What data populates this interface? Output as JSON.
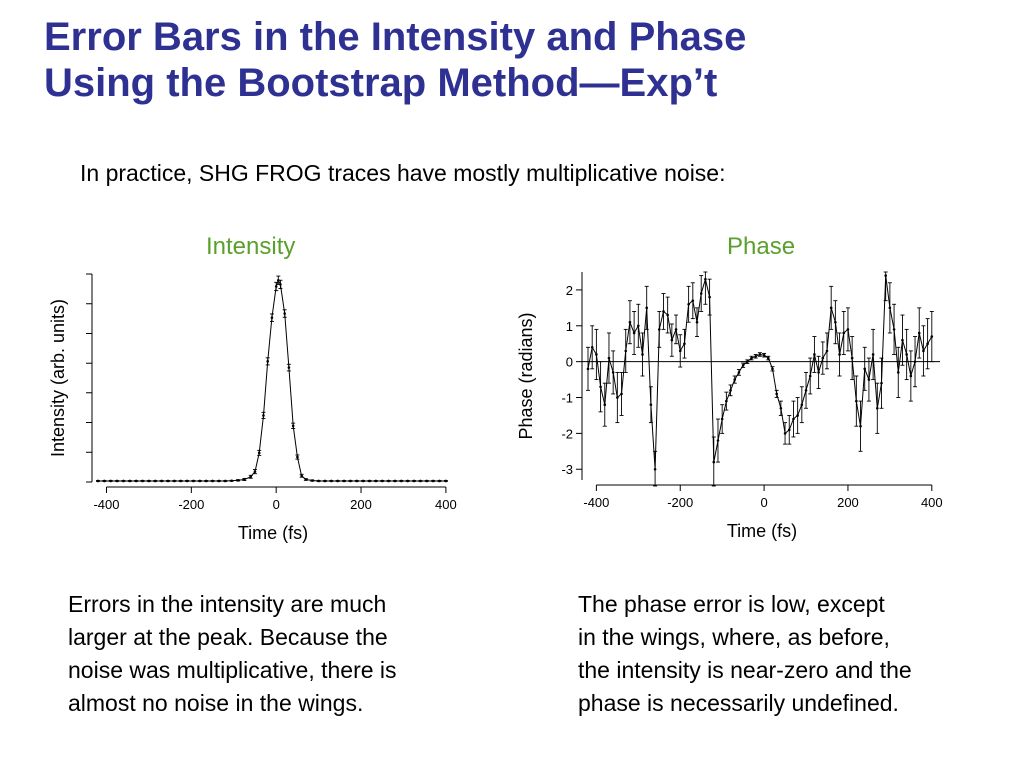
{
  "slide": {
    "title_lines": [
      "Error Bars in the Intensity and Phase",
      "Using the Bootstrap Method—Exp’t"
    ],
    "subtitle": "In practice, SHG FROG traces have mostly multiplicative noise:",
    "caption_left": [
      "Errors in the intensity are much",
      "larger at the peak. Because the",
      "noise was multiplicative, there is",
      "almost no noise in the wings."
    ],
    "caption_right": [
      "The phase error is low, except",
      "in the wings, where, as before,",
      "the intensity is near-zero and the",
      "phase is necessarily undefined."
    ],
    "colors": {
      "title": "#2e3192",
      "panel_title": "#5aa02c",
      "plot": "#000000"
    }
  },
  "chart_data": [
    {
      "type": "line",
      "title": "Intensity",
      "xlabel": "Time (fs)",
      "ylabel": "Intensity (arb. units)",
      "xlim": [
        -420,
        405
      ],
      "ylim": [
        0,
        1.0
      ],
      "xticks": [
        -400,
        -200,
        0,
        200,
        400
      ],
      "yticks": [
        0,
        0.143,
        0.286,
        0.429,
        0.571,
        0.714,
        0.857,
        1.0
      ],
      "show_ytick_labels": false,
      "series": [
        {
          "x": [
            -420,
            -405,
            -390,
            -375,
            -360,
            -345,
            -330,
            -315,
            -300,
            -285,
            -270,
            -255,
            -240,
            -225,
            -210,
            -195,
            -180,
            -165,
            -150,
            -135,
            -120,
            -105,
            -90,
            -75,
            -60,
            -50,
            -40,
            -30,
            -20,
            -10,
            0,
            5,
            10,
            20,
            30,
            40,
            50,
            60,
            70,
            85,
            100,
            115,
            130,
            145,
            160,
            175,
            190,
            205,
            220,
            235,
            250,
            265,
            280,
            295,
            310,
            325,
            340,
            355,
            370,
            385,
            400
          ],
          "y": [
            0.005,
            0.005,
            0.005,
            0.005,
            0.005,
            0.005,
            0.005,
            0.005,
            0.005,
            0.005,
            0.005,
            0.005,
            0.005,
            0.005,
            0.005,
            0.005,
            0.005,
            0.005,
            0.005,
            0.005,
            0.005,
            0.006,
            0.008,
            0.012,
            0.025,
            0.05,
            0.14,
            0.32,
            0.58,
            0.79,
            0.94,
            0.97,
            0.95,
            0.81,
            0.55,
            0.27,
            0.12,
            0.03,
            0.012,
            0.007,
            0.005,
            0.005,
            0.005,
            0.005,
            0.005,
            0.005,
            0.005,
            0.005,
            0.005,
            0.005,
            0.005,
            0.005,
            0.005,
            0.005,
            0.005,
            0.005,
            0.005,
            0.005,
            0.005,
            0.005,
            0.005
          ],
          "err": [
            0.002,
            0.002,
            0.002,
            0.002,
            0.002,
            0.002,
            0.002,
            0.002,
            0.002,
            0.002,
            0.002,
            0.002,
            0.002,
            0.002,
            0.002,
            0.002,
            0.002,
            0.002,
            0.002,
            0.002,
            0.002,
            0.002,
            0.003,
            0.005,
            0.007,
            0.01,
            0.012,
            0.015,
            0.017,
            0.018,
            0.02,
            0.02,
            0.02,
            0.018,
            0.016,
            0.013,
            0.01,
            0.007,
            0.004,
            0.003,
            0.002,
            0.002,
            0.002,
            0.002,
            0.002,
            0.002,
            0.002,
            0.002,
            0.002,
            0.002,
            0.002,
            0.002,
            0.002,
            0.002,
            0.002,
            0.002,
            0.002,
            0.002,
            0.002,
            0.002,
            0.002
          ]
        }
      ]
    },
    {
      "type": "line",
      "title": "Phase",
      "xlabel": "Time (fs)",
      "ylabel": "Phase (radians)",
      "xlim": [
        -420,
        410
      ],
      "ylim": [
        -3.3,
        2.5
      ],
      "xticks": [
        -400,
        -200,
        0,
        200,
        400
      ],
      "yticks": [
        -3,
        -2,
        -1,
        0,
        1,
        2
      ],
      "zero_line": true,
      "series": [
        {
          "x": [
            -420,
            -410,
            -400,
            -390,
            -380,
            -370,
            -360,
            -350,
            -340,
            -330,
            -320,
            -310,
            -300,
            -290,
            -280,
            -270,
            -260,
            -250,
            -240,
            -230,
            -220,
            -210,
            -200,
            -190,
            -180,
            -170,
            -160,
            -150,
            -140,
            -130,
            -120,
            -110,
            -100,
            -90,
            -80,
            -70,
            -60,
            -50,
            -40,
            -30,
            -20,
            -10,
            0,
            10,
            20,
            30,
            40,
            50,
            60,
            70,
            80,
            90,
            100,
            110,
            120,
            130,
            140,
            150,
            160,
            170,
            180,
            190,
            200,
            210,
            220,
            230,
            240,
            250,
            260,
            270,
            280,
            290,
            300,
            310,
            320,
            330,
            340,
            350,
            360,
            370,
            380,
            390,
            400
          ],
          "y": [
            -0.2,
            0.4,
            0.2,
            -0.7,
            -1.2,
            0.1,
            -0.3,
            -1.0,
            -0.9,
            0.3,
            1.1,
            0.8,
            1.0,
            0.2,
            1.5,
            -1.2,
            -3.0,
            0.9,
            1.4,
            1.3,
            0.6,
            0.9,
            0.3,
            0.5,
            1.6,
            1.7,
            1.1,
            1.9,
            2.3,
            1.8,
            -2.8,
            -2.2,
            -1.6,
            -1.1,
            -0.8,
            -0.5,
            -0.3,
            -0.1,
            0.0,
            0.1,
            0.15,
            0.2,
            0.18,
            0.1,
            -0.2,
            -0.9,
            -1.3,
            -2.0,
            -1.9,
            -1.6,
            -1.5,
            -1.2,
            -0.8,
            -0.4,
            0.2,
            -0.3,
            0.1,
            0.3,
            1.5,
            1.1,
            0.2,
            0.8,
            0.9,
            0.1,
            -1.1,
            -1.8,
            -0.2,
            -0.5,
            0.2,
            -1.3,
            -0.6,
            2.4,
            1.5,
            0.9,
            -0.3,
            0.6,
            0.2,
            -0.4,
            0.0,
            0.8,
            0.3,
            0.5,
            0.7
          ],
          "err": [
            0.6,
            0.6,
            0.7,
            0.7,
            0.6,
            0.7,
            0.6,
            0.7,
            0.6,
            0.6,
            0.6,
            0.6,
            0.6,
            0.6,
            0.6,
            0.5,
            0.5,
            0.5,
            0.5,
            0.5,
            0.45,
            0.4,
            0.45,
            0.4,
            0.5,
            0.5,
            0.4,
            0.5,
            0.7,
            0.5,
            0.7,
            0.6,
            0.4,
            0.25,
            0.15,
            0.1,
            0.08,
            0.06,
            0.05,
            0.05,
            0.05,
            0.05,
            0.05,
            0.05,
            0.06,
            0.1,
            0.2,
            0.3,
            0.4,
            0.5,
            0.5,
            0.5,
            0.5,
            0.5,
            0.5,
            0.45,
            0.45,
            0.5,
            0.6,
            0.6,
            0.6,
            0.6,
            0.6,
            0.6,
            0.7,
            0.7,
            0.6,
            0.6,
            0.7,
            0.7,
            0.7,
            0.7,
            0.7,
            0.7,
            0.7,
            0.7,
            0.7,
            0.7,
            0.7,
            0.7,
            0.7,
            0.7,
            0.7
          ]
        }
      ]
    }
  ]
}
